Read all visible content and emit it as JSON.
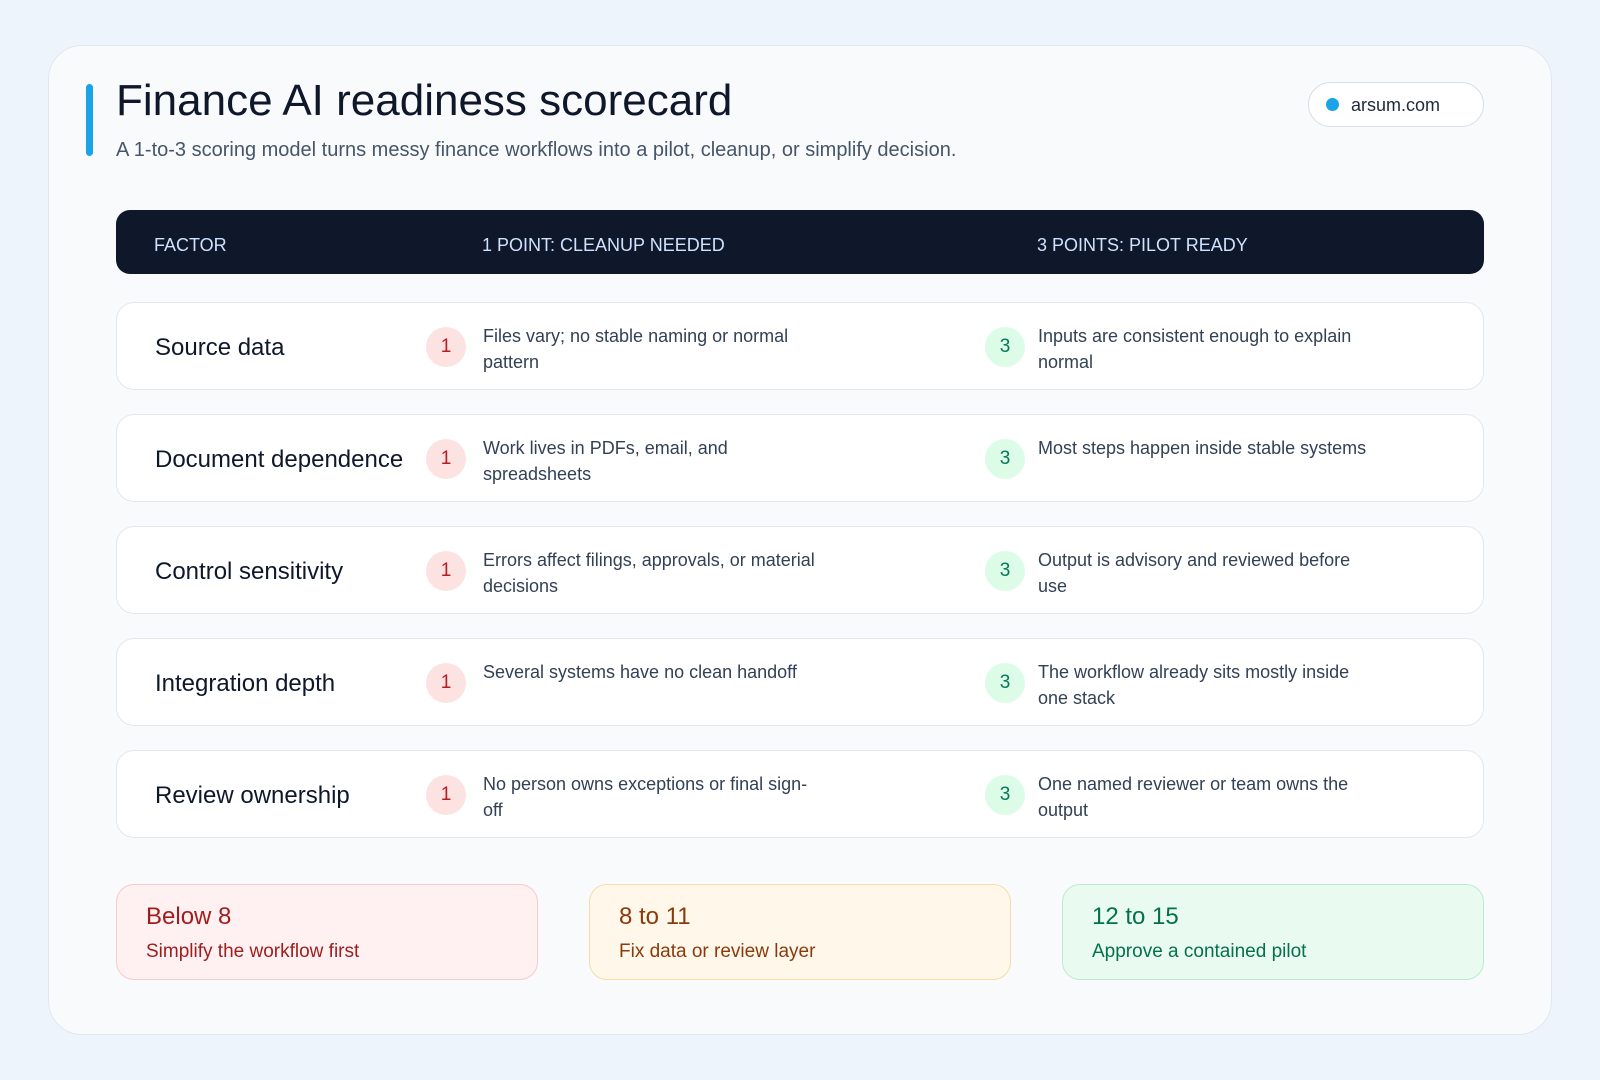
{
  "header": {
    "title": "Finance AI readiness scorecard",
    "subtitle": "A 1-to-3 scoring model turns messy finance workflows into a pilot, cleanup, or simplify decision.",
    "badge": "arsum.com"
  },
  "table": {
    "columns": [
      "FACTOR",
      "1 POINT: CLEANUP NEEDED",
      "3 POINTS: PILOT READY"
    ],
    "rows": [
      {
        "factor": "Source data",
        "low_score": 1,
        "low_text": "Files vary; no stable naming or normal pattern",
        "high_score": 3,
        "high_text": "Inputs are consistent enough to explain normal"
      },
      {
        "factor": "Document dependence",
        "low_score": 1,
        "low_text": "Work lives in PDFs, email, and spreadsheets",
        "high_score": 3,
        "high_text": "Most steps happen inside stable systems"
      },
      {
        "factor": "Control sensitivity",
        "low_score": 1,
        "low_text": "Errors affect filings, approvals, or material decisions",
        "high_score": 3,
        "high_text": "Output is advisory and reviewed before use"
      },
      {
        "factor": "Integration depth",
        "low_score": 1,
        "low_text": "Several systems have no clean handoff",
        "high_score": 3,
        "high_text": "The workflow already sits mostly inside one stack"
      },
      {
        "factor": "Review ownership",
        "low_score": 1,
        "low_text": "No person owns exceptions or final sign-off",
        "high_score": 3,
        "high_text": "One named reviewer or team owns the output"
      }
    ]
  },
  "bands": [
    {
      "range": "Below 8",
      "action": "Simplify the workflow first"
    },
    {
      "range": "8 to 11",
      "action": "Fix data or review layer"
    },
    {
      "range": "12 to 15",
      "action": "Approve a contained pilot"
    }
  ]
}
